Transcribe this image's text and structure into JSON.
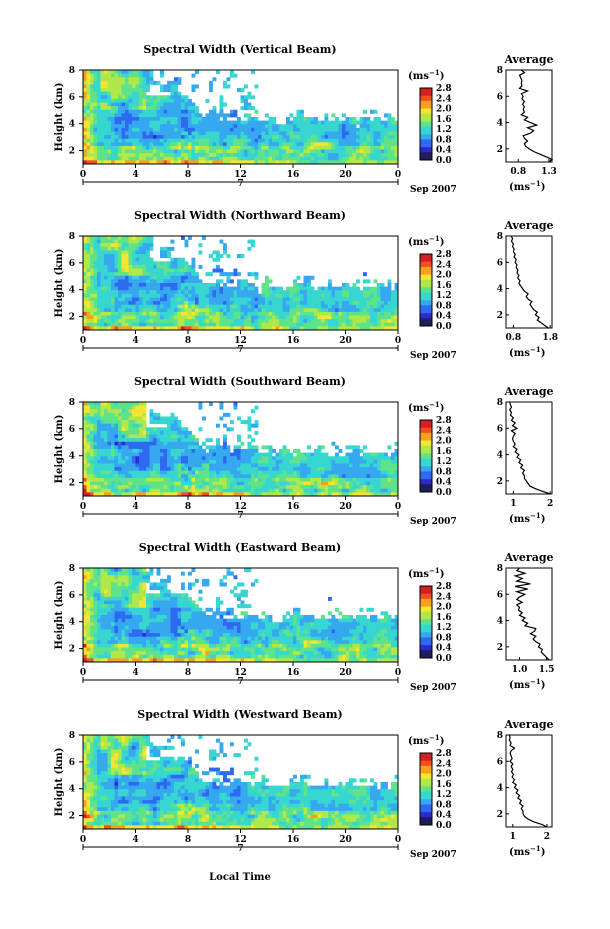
{
  "panels": [
    {
      "title": "Spectral Width (Vertical Beam)",
      "cb_ticks": [
        "0.0",
        "0.4",
        "0.8",
        "1.2",
        "1.6",
        "2.0",
        "2.4",
        "2.8"
      ],
      "avg_ticks": [
        "0.8",
        "1.3"
      ],
      "avg_range": [
        0.6,
        1.35
      ],
      "avg_values": [
        1.3,
        1.35,
        1.25,
        1.15,
        1.05,
        0.98,
        0.92,
        0.9,
        0.95,
        0.9,
        0.88,
        1.0,
        1.05,
        0.95,
        1.1,
        1.0,
        0.9,
        0.95,
        0.85,
        0.9,
        0.88,
        0.9,
        0.87,
        0.9,
        0.86,
        0.88,
        0.85,
        0.95,
        0.82,
        0.86,
        0.85,
        0.86,
        0.84,
        0.82,
        0.9,
        0.85
      ]
    },
    {
      "title": "Spectral Width (Northward Beam)",
      "cb_ticks": [
        "0.0",
        "0.4",
        "0.8",
        "1.2",
        "1.6",
        "2.0",
        "2.4",
        "2.8"
      ],
      "avg_ticks": [
        "0.8",
        "1.8"
      ],
      "avg_range": [
        0.6,
        1.85
      ],
      "avg_values": [
        1.75,
        1.65,
        1.55,
        1.45,
        1.5,
        1.4,
        1.45,
        1.35,
        1.3,
        1.25,
        1.3,
        1.2,
        1.15,
        1.2,
        1.1,
        1.05,
        1.0,
        0.95,
        0.98,
        0.92,
        0.95,
        0.9,
        0.92,
        0.88,
        0.9,
        0.85,
        0.88,
        0.82,
        0.85,
        0.8,
        0.82,
        0.78,
        0.8,
        0.75,
        0.78,
        0.74
      ]
    },
    {
      "title": "Spectral Width (Southward Beam)",
      "cb_ticks": [
        "0.0",
        "0.4",
        "0.8",
        "1.2",
        "1.6",
        "2.0",
        "2.4",
        "2.8"
      ],
      "avg_ticks": [
        "1",
        "2"
      ],
      "avg_range": [
        0.8,
        2.05
      ],
      "avg_values": [
        2.0,
        1.8,
        1.6,
        1.45,
        1.4,
        1.35,
        1.3,
        1.3,
        1.25,
        1.3,
        1.2,
        1.25,
        1.15,
        1.2,
        1.1,
        1.15,
        1.05,
        1.1,
        1.0,
        1.05,
        1.0,
        0.98,
        1.0,
        1.05,
        0.95,
        1.1,
        0.98,
        1.05,
        0.95,
        1.0,
        0.92,
        0.95,
        0.9,
        0.95,
        0.92,
        0.9
      ]
    },
    {
      "title": "Spectral Width (Eastward Beam)",
      "cb_ticks": [
        "0.0",
        "0.4",
        "0.8",
        "1.2",
        "1.6",
        "2.0",
        "2.4",
        "2.8"
      ],
      "avg_ticks": [
        "1.0",
        "1.5"
      ],
      "avg_range": [
        0.75,
        1.6
      ],
      "avg_values": [
        1.55,
        1.5,
        1.45,
        1.4,
        1.42,
        1.35,
        1.38,
        1.3,
        1.25,
        1.3,
        1.2,
        1.28,
        1.3,
        1.1,
        1.15,
        1.05,
        1.1,
        1.0,
        1.05,
        0.98,
        1.0,
        0.95,
        1.05,
        0.95,
        1.0,
        1.1,
        0.95,
        1.15,
        0.92,
        1.2,
        0.95,
        1.05,
        0.92,
        1.1,
        0.95,
        1.0
      ]
    },
    {
      "title": "Spectral Width (Westward Beam)",
      "cb_ticks": [
        "0.0",
        "0.4",
        "0.8",
        "1.2",
        "1.6",
        "2.0",
        "2.4",
        "2.8"
      ],
      "avg_ticks": [
        "1",
        "2"
      ],
      "avg_range": [
        0.8,
        2.15
      ],
      "avg_values": [
        2.0,
        1.85,
        1.6,
        1.45,
        1.35,
        1.3,
        1.3,
        1.25,
        1.3,
        1.2,
        1.25,
        1.15,
        1.2,
        1.1,
        1.15,
        1.05,
        1.1,
        1.0,
        1.05,
        0.98,
        1.02,
        0.96,
        1.0,
        0.95,
        1.0,
        0.92,
        0.98,
        0.95,
        0.92,
        0.95,
        1.05,
        0.92,
        0.95,
        0.9,
        0.92,
        0.9
      ]
    }
  ],
  "height_ticks": [
    "2",
    "4",
    "6",
    "8"
  ],
  "time_ticks": [
    "0",
    "4",
    "8",
    "12",
    "16",
    "20",
    "0"
  ],
  "date_tick": "7",
  "date_label": "Sep 2007",
  "height_label": "Height (km)",
  "xlabel": "Local Time",
  "unit_label": "(ms",
  "unit_exp": "−1",
  "avg_title": "Average",
  "chart_data": {
    "type": "heatmap",
    "x_range": [
      0,
      24
    ],
    "x_unit": "Local Time (h)",
    "y_range": [
      1,
      8
    ],
    "y_unit": "Height (km)",
    "color_range": [
      0,
      2.8
    ],
    "colormap": [
      "#1e1e5a",
      "#2b2bd0",
      "#2e6af0",
      "#36a8f0",
      "#37d6d0",
      "#5ee28a",
      "#b0e84a",
      "#f4e630",
      "#f7a020",
      "#f05020",
      "#d02020"
    ]
  }
}
